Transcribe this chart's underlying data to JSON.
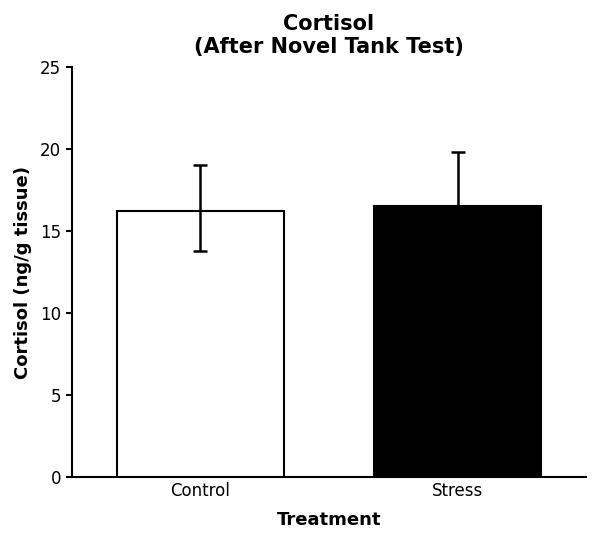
{
  "categories": [
    "Control",
    "Stress"
  ],
  "values": [
    16.2,
    16.5
  ],
  "error_lower": [
    2.4,
    3.2
  ],
  "error_upper": [
    2.8,
    3.3
  ],
  "bar_colors": [
    "#ffffff",
    "#000000"
  ],
  "bar_edge_colors": [
    "#000000",
    "#000000"
  ],
  "bar_width": 0.65,
  "x_positions": [
    1,
    2
  ],
  "xlim": [
    0.5,
    2.5
  ],
  "title_line1": "Cortisol",
  "title_line2": "(After Novel Tank Test)",
  "xlabel": "Treatment",
  "ylabel": "Cortisol (ng/g tissue)",
  "ylim": [
    0,
    25
  ],
  "yticks": [
    0,
    5,
    10,
    15,
    20,
    25
  ],
  "title_fontsize": 15,
  "label_fontsize": 13,
  "tick_fontsize": 12,
  "bar_edge_width": 1.5,
  "error_cap_size": 5,
  "error_line_width": 1.8,
  "background_color": "#ffffff"
}
